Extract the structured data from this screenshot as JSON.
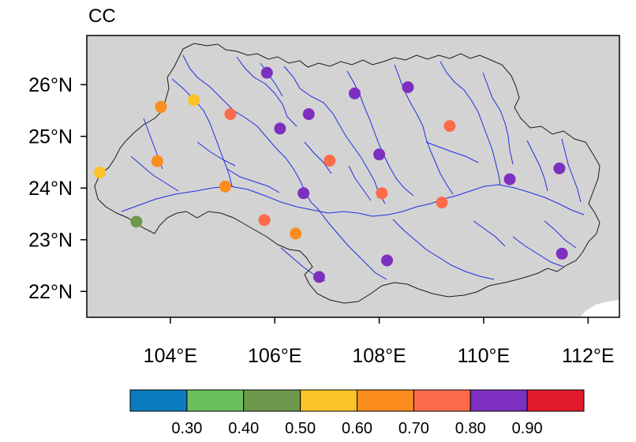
{
  "title": "CC",
  "lon_range": [
    102.4,
    112.6
  ],
  "lat_range": [
    21.5,
    26.95
  ],
  "lon_ticks": [
    {
      "value": 104,
      "label": "104°E"
    },
    {
      "value": 106,
      "label": "106°E"
    },
    {
      "value": 108,
      "label": "108°E"
    },
    {
      "value": 110,
      "label": "110°E"
    },
    {
      "value": 112,
      "label": "112°E"
    }
  ],
  "lat_ticks": [
    {
      "value": 22,
      "label": "22°N"
    },
    {
      "value": 23,
      "label": "23°N"
    },
    {
      "value": 24,
      "label": "24°N"
    },
    {
      "value": 25,
      "label": "25°N"
    },
    {
      "value": 26,
      "label": "26°N"
    }
  ],
  "colorbar": {
    "colors": [
      "#0a7bbd",
      "#6abf5b",
      "#6e994c",
      "#fbc326",
      "#fb8c1e",
      "#fd6b4b",
      "#7d2fbf",
      "#e11a2c"
    ],
    "labels": [
      "0.30",
      "0.40",
      "0.50",
      "0.60",
      "0.70",
      "0.80",
      "0.90"
    ]
  },
  "stations": [
    {
      "lon": 102.65,
      "lat": 24.3,
      "value": 0.55
    },
    {
      "lon": 103.35,
      "lat": 23.35,
      "value": 0.45
    },
    {
      "lon": 103.75,
      "lat": 24.52,
      "value": 0.65
    },
    {
      "lon": 103.82,
      "lat": 25.57,
      "value": 0.65
    },
    {
      "lon": 104.45,
      "lat": 25.7,
      "value": 0.55
    },
    {
      "lon": 105.15,
      "lat": 25.43,
      "value": 0.75
    },
    {
      "lon": 105.05,
      "lat": 24.03,
      "value": 0.65
    },
    {
      "lon": 105.85,
      "lat": 26.23,
      "value": 0.85
    },
    {
      "lon": 106.1,
      "lat": 25.15,
      "value": 0.85
    },
    {
      "lon": 106.65,
      "lat": 25.43,
      "value": 0.85
    },
    {
      "lon": 106.55,
      "lat": 23.9,
      "value": 0.85
    },
    {
      "lon": 105.8,
      "lat": 23.38,
      "value": 0.75
    },
    {
      "lon": 106.4,
      "lat": 23.12,
      "value": 0.65
    },
    {
      "lon": 107.05,
      "lat": 24.53,
      "value": 0.75
    },
    {
      "lon": 106.85,
      "lat": 22.28,
      "value": 0.85
    },
    {
      "lon": 107.53,
      "lat": 25.83,
      "value": 0.85
    },
    {
      "lon": 108.0,
      "lat": 24.65,
      "value": 0.85
    },
    {
      "lon": 108.05,
      "lat": 23.9,
      "value": 0.75
    },
    {
      "lon": 108.15,
      "lat": 22.6,
      "value": 0.85
    },
    {
      "lon": 108.55,
      "lat": 25.95,
      "value": 0.85
    },
    {
      "lon": 109.35,
      "lat": 25.2,
      "value": 0.75
    },
    {
      "lon": 109.2,
      "lat": 23.72,
      "value": 0.75
    },
    {
      "lon": 110.5,
      "lat": 24.17,
      "value": 0.85
    },
    {
      "lon": 111.45,
      "lat": 24.38,
      "value": 0.85
    },
    {
      "lon": 111.5,
      "lat": 22.73,
      "value": 0.85
    }
  ]
}
